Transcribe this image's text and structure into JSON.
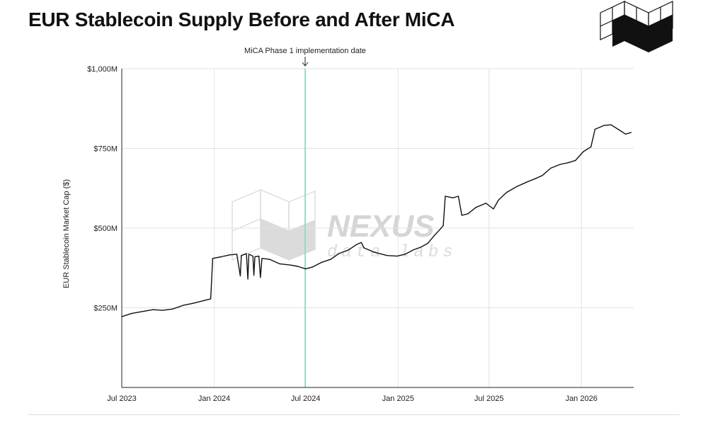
{
  "title": "EUR Stablecoin Supply Before and After MiCA",
  "watermark": {
    "brand": "NEXUS",
    "sub": "data labs"
  },
  "chart_data": {
    "type": "line",
    "title": "EUR Stablecoin Supply Before and After MiCA",
    "xlabel": "",
    "ylabel": "EUR Stablecoin Market Cap ($)",
    "ylim": [
      0,
      1000
    ],
    "grid": true,
    "x_ticks": [
      "Jul 2023",
      "Jan 2024",
      "Jul 2024",
      "Jan 2025",
      "Jul 2025",
      "Jan 2026"
    ],
    "y_ticks": [
      "$250M",
      "$500M",
      "$750M",
      "$1,000M"
    ],
    "y_tick_values": [
      250,
      500,
      750,
      1000
    ],
    "annotation": {
      "label": "MiCA Phase 1 implementation date",
      "date": "2024-06-30",
      "color": "#7fd9b4"
    },
    "series": [
      {
        "color": "#111111",
        "points": [
          [
            "2023-07-01",
            222
          ],
          [
            "2023-07-20",
            232
          ],
          [
            "2023-08-10",
            238
          ],
          [
            "2023-09-01",
            244
          ],
          [
            "2023-09-20",
            242
          ],
          [
            "2023-10-10",
            246
          ],
          [
            "2023-11-01",
            258
          ],
          [
            "2023-11-20",
            264
          ],
          [
            "2023-12-15",
            274
          ],
          [
            "2023-12-25",
            278
          ],
          [
            "2023-12-29",
            405
          ],
          [
            "2024-01-15",
            410
          ],
          [
            "2024-02-01",
            416
          ],
          [
            "2024-02-15",
            418
          ],
          [
            "2024-02-22",
            350
          ],
          [
            "2024-02-24",
            414
          ],
          [
            "2024-03-05",
            420
          ],
          [
            "2024-03-08",
            340
          ],
          [
            "2024-03-10",
            418
          ],
          [
            "2024-03-18",
            412
          ],
          [
            "2024-03-20",
            352
          ],
          [
            "2024-03-22",
            410
          ],
          [
            "2024-03-30",
            412
          ],
          [
            "2024-04-02",
            345
          ],
          [
            "2024-04-05",
            405
          ],
          [
            "2024-04-20",
            402
          ],
          [
            "2024-05-10",
            388
          ],
          [
            "2024-06-01",
            384
          ],
          [
            "2024-06-15",
            380
          ],
          [
            "2024-07-01",
            372
          ],
          [
            "2024-07-15",
            378
          ],
          [
            "2024-08-01",
            392
          ],
          [
            "2024-08-20",
            402
          ],
          [
            "2024-09-05",
            420
          ],
          [
            "2024-09-25",
            432
          ],
          [
            "2024-10-10",
            448
          ],
          [
            "2024-10-20",
            455
          ],
          [
            "2024-10-25",
            438
          ],
          [
            "2024-11-15",
            424
          ],
          [
            "2024-12-10",
            414
          ],
          [
            "2024-12-30",
            412
          ],
          [
            "2025-01-15",
            418
          ],
          [
            "2025-02-01",
            432
          ],
          [
            "2025-02-15",
            440
          ],
          [
            "2025-03-01",
            452
          ],
          [
            "2025-03-15",
            478
          ],
          [
            "2025-03-25",
            495
          ],
          [
            "2025-04-01",
            508
          ],
          [
            "2025-04-05",
            600
          ],
          [
            "2025-04-20",
            595
          ],
          [
            "2025-05-01",
            600
          ],
          [
            "2025-05-08",
            540
          ],
          [
            "2025-05-20",
            545
          ],
          [
            "2025-06-05",
            565
          ],
          [
            "2025-06-25",
            578
          ],
          [
            "2025-07-10",
            560
          ],
          [
            "2025-07-20",
            588
          ],
          [
            "2025-08-05",
            612
          ],
          [
            "2025-08-25",
            630
          ],
          [
            "2025-09-15",
            645
          ],
          [
            "2025-10-01",
            655
          ],
          [
            "2025-10-15",
            665
          ],
          [
            "2025-11-01",
            688
          ],
          [
            "2025-11-20",
            700
          ],
          [
            "2025-12-05",
            705
          ],
          [
            "2025-12-20",
            712
          ],
          [
            "2026-01-05",
            740
          ],
          [
            "2026-01-20",
            755
          ],
          [
            "2026-01-28",
            810
          ],
          [
            "2026-02-15",
            822
          ],
          [
            "2026-03-01",
            824
          ],
          [
            "2026-03-15",
            810
          ],
          [
            "2026-03-30",
            795
          ],
          [
            "2026-04-10",
            800
          ]
        ]
      }
    ]
  }
}
